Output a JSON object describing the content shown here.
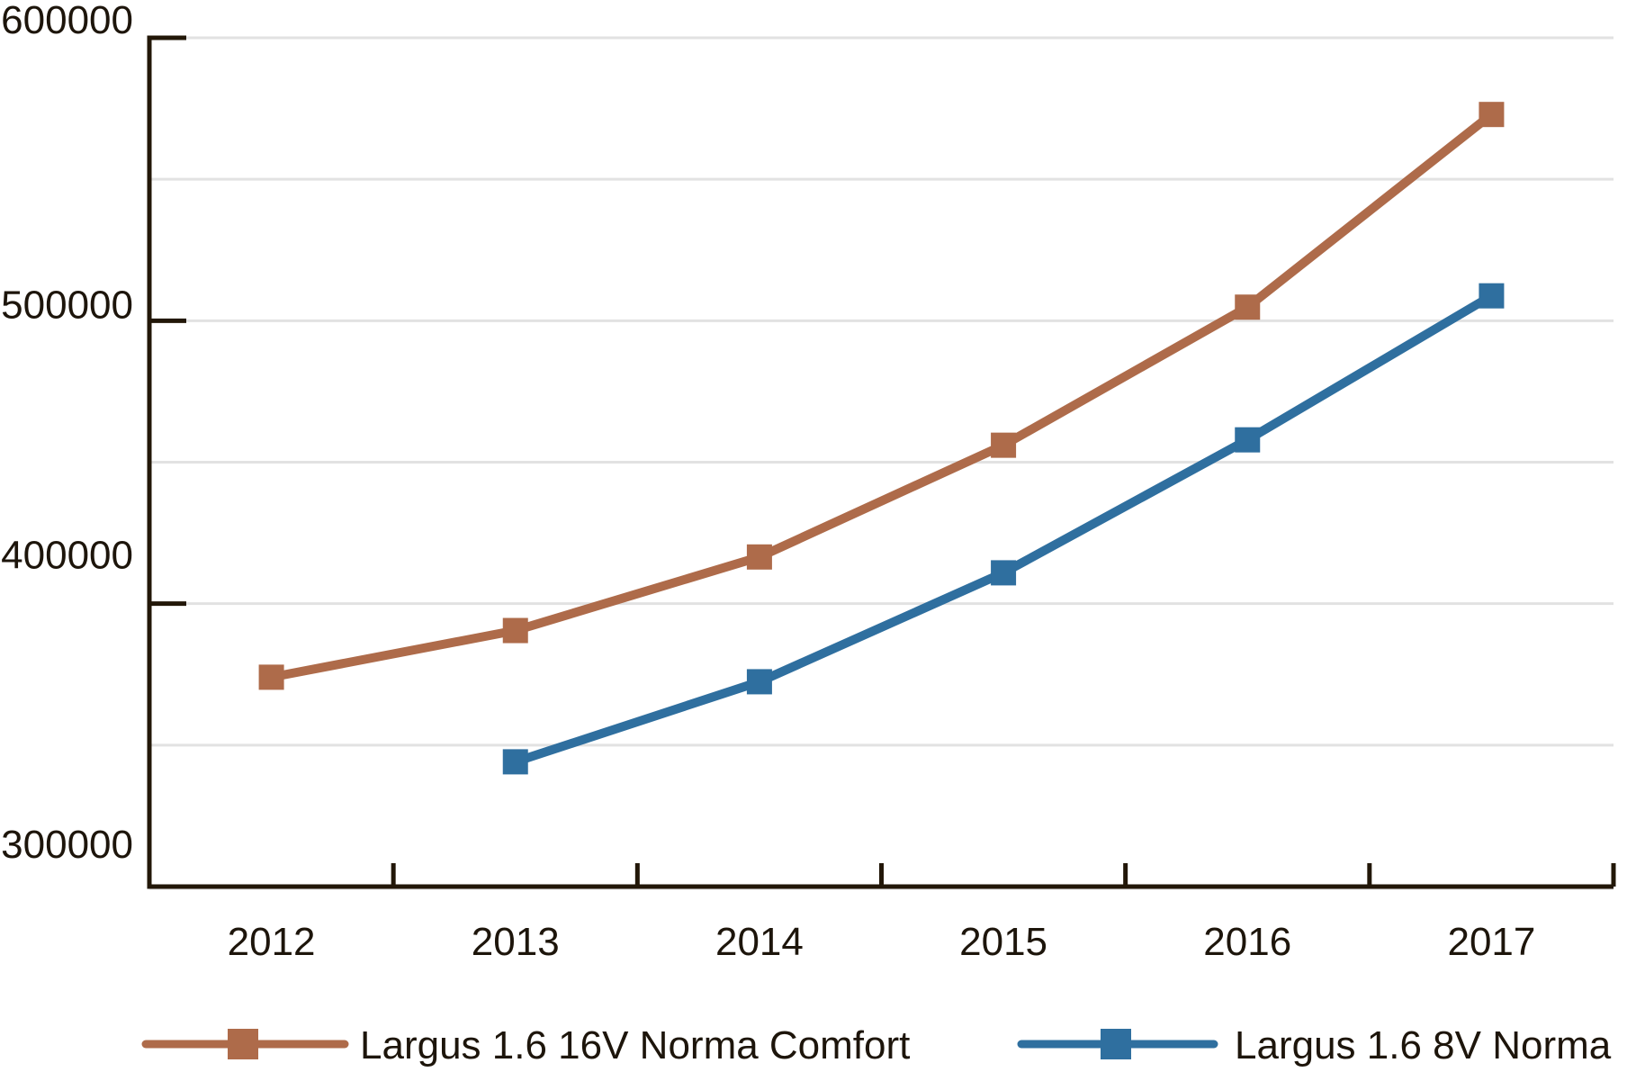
{
  "chart_data": {
    "type": "line",
    "title": "",
    "xlabel": "",
    "ylabel": "",
    "categories": [
      "2012",
      "2013",
      "2014",
      "2015",
      "2016",
      "2017"
    ],
    "yticks": [
      300000,
      400000,
      500000,
      600000
    ],
    "yticklabels": [
      "300000",
      "400000",
      "500000",
      "600000"
    ],
    "ylim": [
      300000,
      600000
    ],
    "gridline_step": 50000,
    "grid": "horizontal",
    "legend_position": "bottom",
    "background_color": "#FFFFFF",
    "axis_color": "#221708",
    "grid_color": "#E2E2E2",
    "text_color": "#1D150B",
    "series": [
      {
        "name": "Largus 1.6 16V Norma Comfort",
        "color": "#AE6B4A",
        "marker": "square",
        "values": [
          374000,
          390500,
          416500,
          456000,
          504800,
          572900
        ]
      },
      {
        "name": "Largus 1.6 8V Norma",
        "color": "#2F6F9F",
        "marker": "square",
        "values": [
          null,
          344100,
          372400,
          410900,
          457900,
          508800
        ]
      }
    ]
  }
}
